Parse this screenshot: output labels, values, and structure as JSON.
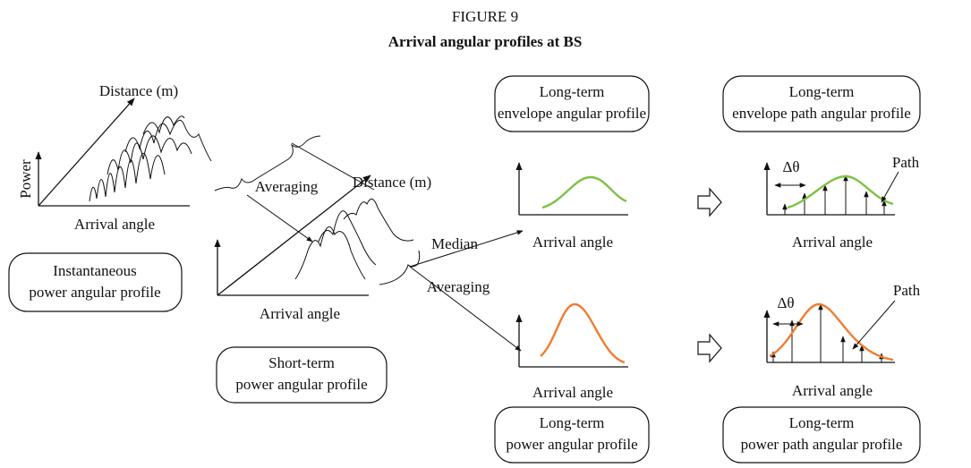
{
  "figure_label": "FIGURE 9",
  "title": "Arrival angular profiles at BS",
  "instantaneous": {
    "z_label": "Distance (m)",
    "y_label": "Power",
    "x_label": "Arrival angle",
    "box": [
      "Instantaneous",
      "power angular profile"
    ]
  },
  "averaging_1": "Averaging",
  "short_term": {
    "z_label": "Distance (m)",
    "x_label": "Arrival angle",
    "box": [
      "Short-term",
      "power angular profile"
    ]
  },
  "median": "Median",
  "averaging_2": "Averaging",
  "envelope": {
    "x_label": "Arrival angle",
    "box": [
      "Long-term",
      "envelope angular profile"
    ]
  },
  "envelope_path": {
    "x_label": "Arrival angle",
    "delta": "Δθ",
    "path": "Path",
    "box": [
      "Long-term",
      "envelope path angular profile"
    ]
  },
  "power": {
    "x_label": "Arrival angle",
    "box": [
      "Long-term",
      "power angular profile"
    ]
  },
  "power_path": {
    "x_label": "Arrival angle",
    "delta": "Δθ",
    "path": "Path",
    "box": [
      "Long-term",
      "power path angular profile"
    ]
  }
}
